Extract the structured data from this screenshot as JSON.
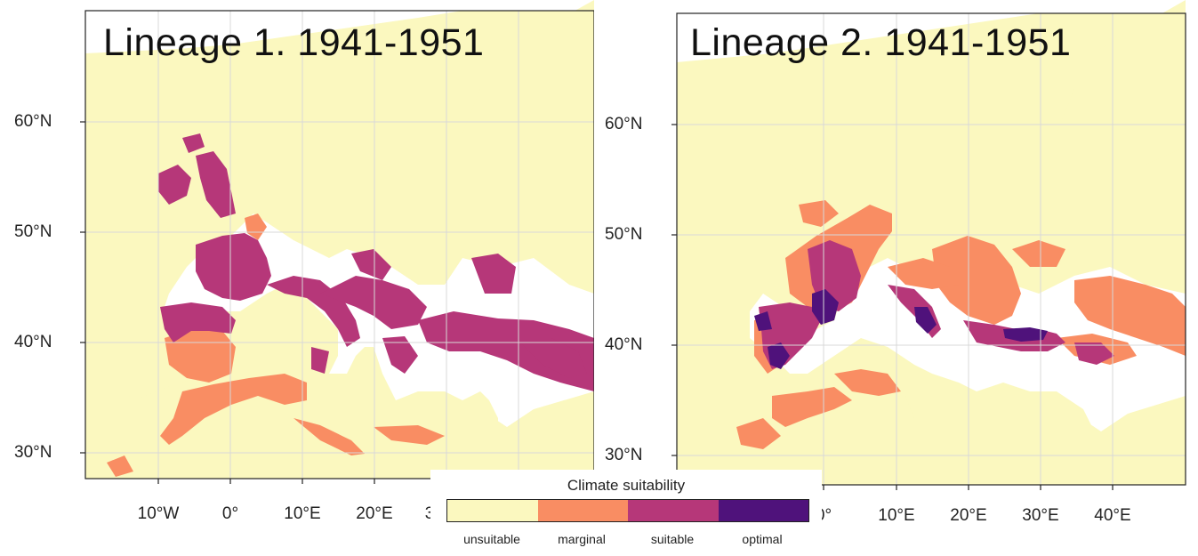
{
  "panels": [
    {
      "title": "Lineage 1. 1941-1951",
      "lat_labels": [
        "60°N",
        "50°N",
        "40°N",
        "30°N"
      ],
      "lon_labels": [
        "10°W",
        "0°",
        "10°E",
        "20°E",
        "3"
      ]
    },
    {
      "title": "Lineage 2. 1941-1951",
      "lat_labels": [
        "60°N",
        "50°N",
        "40°N",
        "30°N"
      ],
      "lon_labels": [
        "0°",
        "10°E",
        "20°E",
        "30°E",
        "40°E"
      ]
    }
  ],
  "legend": {
    "title": "Climate suitability",
    "classes": [
      {
        "label": "unsuitable",
        "color": "#fbf8bf"
      },
      {
        "label": "marginal",
        "color": "#f98d63"
      },
      {
        "label": "suitable",
        "color": "#b63779"
      },
      {
        "label": "optimal",
        "color": "#4f127b"
      }
    ]
  },
  "colors": {
    "sea": "#ffffff",
    "graticule": "#d8d8d8",
    "border": "#c8c8b0",
    "frame": "#222222"
  }
}
